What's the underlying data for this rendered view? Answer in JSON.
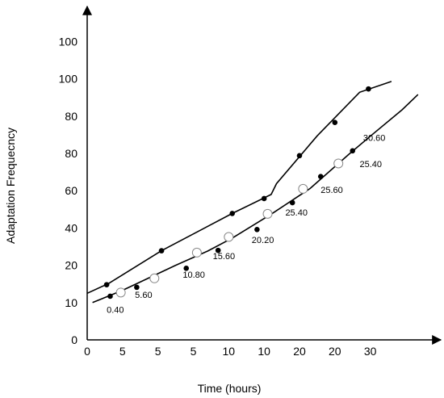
{
  "chart_data": {
    "type": "line",
    "title": "",
    "xlabel": "Time (hours)",
    "ylabel": "Adaptation Frequecncy",
    "x_tick_labels": [
      "0",
      "5",
      "5",
      "5",
      "10",
      "10",
      "20",
      "20",
      "30"
    ],
    "y_tick_labels": [
      "0",
      "10",
      "20",
      "40",
      "60",
      "80",
      "80",
      "100",
      "100"
    ],
    "xlim": [
      0,
      9.4
    ],
    "ylim": [
      0,
      8.4
    ],
    "grid": false,
    "legend": "none",
    "series": [
      {
        "line": [
          [
            0,
            1.25
          ],
          [
            0.6,
            1.51
          ],
          [
            2.1,
            2.39
          ],
          [
            4.1,
            3.39
          ],
          [
            5.2,
            3.9
          ],
          [
            5.35,
            4.19
          ],
          [
            6.5,
            5.47
          ],
          [
            7.7,
            6.64
          ],
          [
            8.6,
            6.93
          ]
        ],
        "points": [
          [
            0.55,
            1.48
          ],
          [
            2.1,
            2.39
          ],
          [
            4.1,
            3.39
          ],
          [
            5.0,
            3.79
          ],
          [
            6.0,
            4.94
          ],
          [
            7.0,
            5.83
          ],
          [
            7.95,
            6.73
          ]
        ],
        "color": "#000000"
      },
      {
        "line": [
          [
            0.15,
            1.0
          ],
          [
            1.0,
            1.33
          ],
          [
            2.5,
            2.0
          ],
          [
            3.4,
            2.38
          ],
          [
            4.1,
            2.73
          ],
          [
            5.2,
            3.37
          ],
          [
            6.3,
            4.06
          ],
          [
            7.4,
            4.98
          ],
          [
            8.0,
            5.46
          ],
          [
            8.9,
            6.17
          ],
          [
            9.35,
            6.58
          ]
        ],
        "solid_points": [
          [
            0.65,
            1.17
          ],
          [
            1.4,
            1.41
          ],
          [
            2.8,
            1.92
          ],
          [
            3.7,
            2.4
          ],
          [
            4.8,
            2.96
          ],
          [
            5.8,
            3.68
          ],
          [
            6.6,
            4.38
          ],
          [
            7.5,
            5.07
          ]
        ],
        "open_points": [
          [
            0.95,
            1.27
          ],
          [
            1.9,
            1.65
          ],
          [
            3.1,
            2.34
          ],
          [
            4.0,
            2.76
          ],
          [
            5.1,
            3.38
          ],
          [
            6.1,
            4.05
          ],
          [
            7.1,
            4.73
          ]
        ],
        "color": "#000000"
      }
    ],
    "data_labels": [
      {
        "text": "0.40",
        "x": 0.55,
        "y": 0.73
      },
      {
        "text": "5.60",
        "x": 1.35,
        "y": 1.13
      },
      {
        "text": "10.80",
        "x": 2.7,
        "y": 1.67
      },
      {
        "text": "15.60",
        "x": 3.55,
        "y": 2.16
      },
      {
        "text": "20.20",
        "x": 4.65,
        "y": 2.6
      },
      {
        "text": "25.40",
        "x": 5.6,
        "y": 3.33
      },
      {
        "text": "25.60",
        "x": 6.6,
        "y": 3.94
      },
      {
        "text": "25.40",
        "x": 7.7,
        "y": 4.63
      },
      {
        "text": "30.60",
        "x": 7.8,
        "y": 5.34
      }
    ]
  }
}
